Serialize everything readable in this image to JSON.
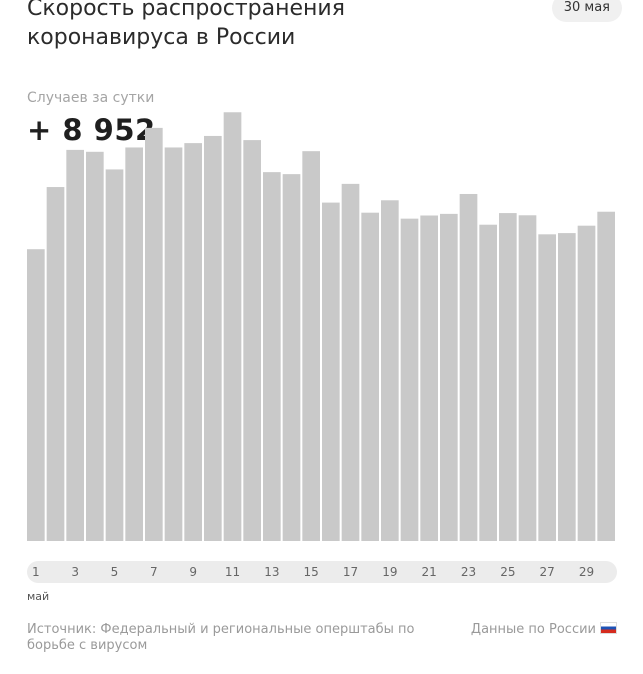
{
  "header": {
    "title_line1": "Скорость распространения",
    "title_line2": "коронавируса в России",
    "date_badge": "30 мая"
  },
  "metric": {
    "label": "Случаев за сутки",
    "value": "+ 8 952"
  },
  "axis": {
    "month_label": "май"
  },
  "footer": {
    "source": "Источник: Федеральный и региональные оперштабы по борьбе с вирусом",
    "data_link": "Данные по России",
    "flag_icon": "russia-flag-icon"
  },
  "colors": {
    "bar": "#c9c9c9",
    "axis_pill": "#ececec",
    "muted_text": "#9a9a9a"
  },
  "chart_data": {
    "type": "bar",
    "title": "Скорость распространения коронавируса в России",
    "ylabel": "Случаев за сутки",
    "xlabel": "",
    "ylim": [
      0,
      11500
    ],
    "grid": false,
    "categories": [
      "1",
      "2",
      "3",
      "4",
      "5",
      "6",
      "7",
      "8",
      "9",
      "10",
      "11",
      "12",
      "13",
      "14",
      "15",
      "16",
      "17",
      "18",
      "19",
      "20",
      "21",
      "22",
      "23",
      "24",
      "25",
      "26",
      "27",
      "28",
      "29",
      "30"
    ],
    "tick_labels": [
      "1",
      "3",
      "5",
      "7",
      "9",
      "11",
      "13",
      "15",
      "17",
      "19",
      "21",
      "23",
      "25",
      "27",
      "29"
    ],
    "values": [
      7933,
      9623,
      10633,
      10581,
      10102,
      10699,
      11231,
      10699,
      10817,
      11012,
      11656,
      10899,
      10028,
      9974,
      10598,
      9200,
      9709,
      8926,
      9263,
      8764,
      8849,
      8894,
      9434,
      8599,
      8915,
      8855,
      8338,
      8371,
      8572,
      8952
    ]
  }
}
